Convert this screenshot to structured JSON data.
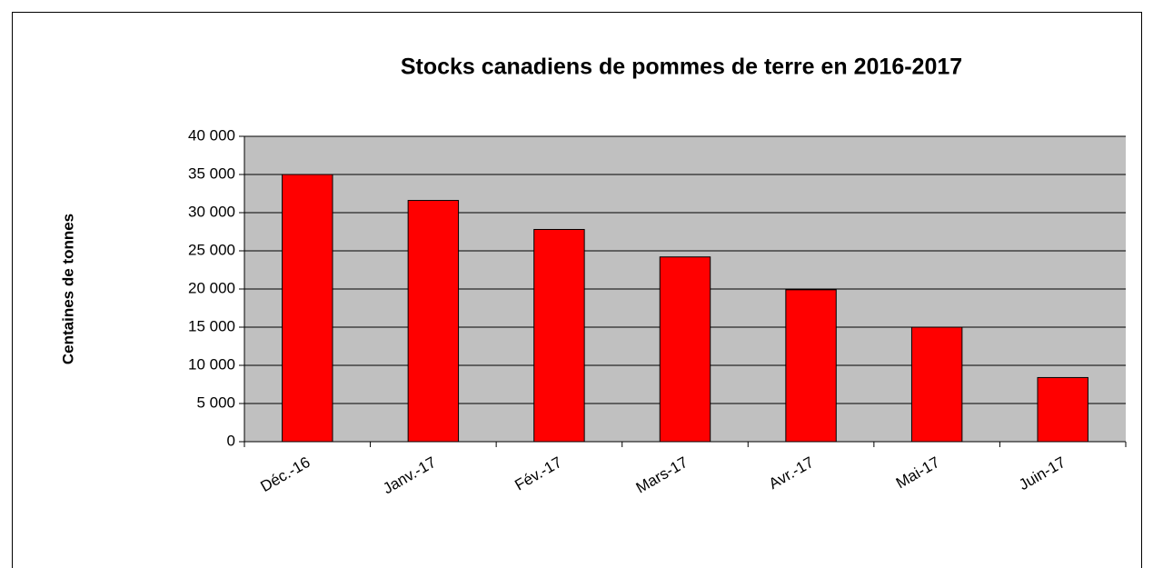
{
  "chart_data": {
    "type": "bar",
    "title": "Stocks canadiens de pommes de terre en 2016-2017",
    "y_label": "Centaines de tonnes",
    "categories": [
      "Déc.-16",
      "Janv.-17",
      "Fév.-17",
      "Mars-17",
      "Avr.-17",
      "Mai-17",
      "Juin-17"
    ],
    "values": [
      35000,
      31600,
      27800,
      24200,
      19900,
      15000,
      8400
    ],
    "color": "#ff0000",
    "ylim": [
      0,
      40000
    ],
    "yticks": [
      0,
      {
        "value": 5000,
        "label": "5 000"
      },
      {
        "value": 10000,
        "label": "10 000"
      },
      {
        "value": 15000,
        "label": "15 000"
      },
      {
        "value": 20000,
        "label": "20 000"
      },
      {
        "value": 25000,
        "label": "25 000"
      },
      {
        "value": 30000,
        "label": "30 000"
      },
      {
        "value": 35000,
        "label": "35 000"
      },
      {
        "value": 40000,
        "label": "40 000"
      }
    ],
    "grid": true
  }
}
